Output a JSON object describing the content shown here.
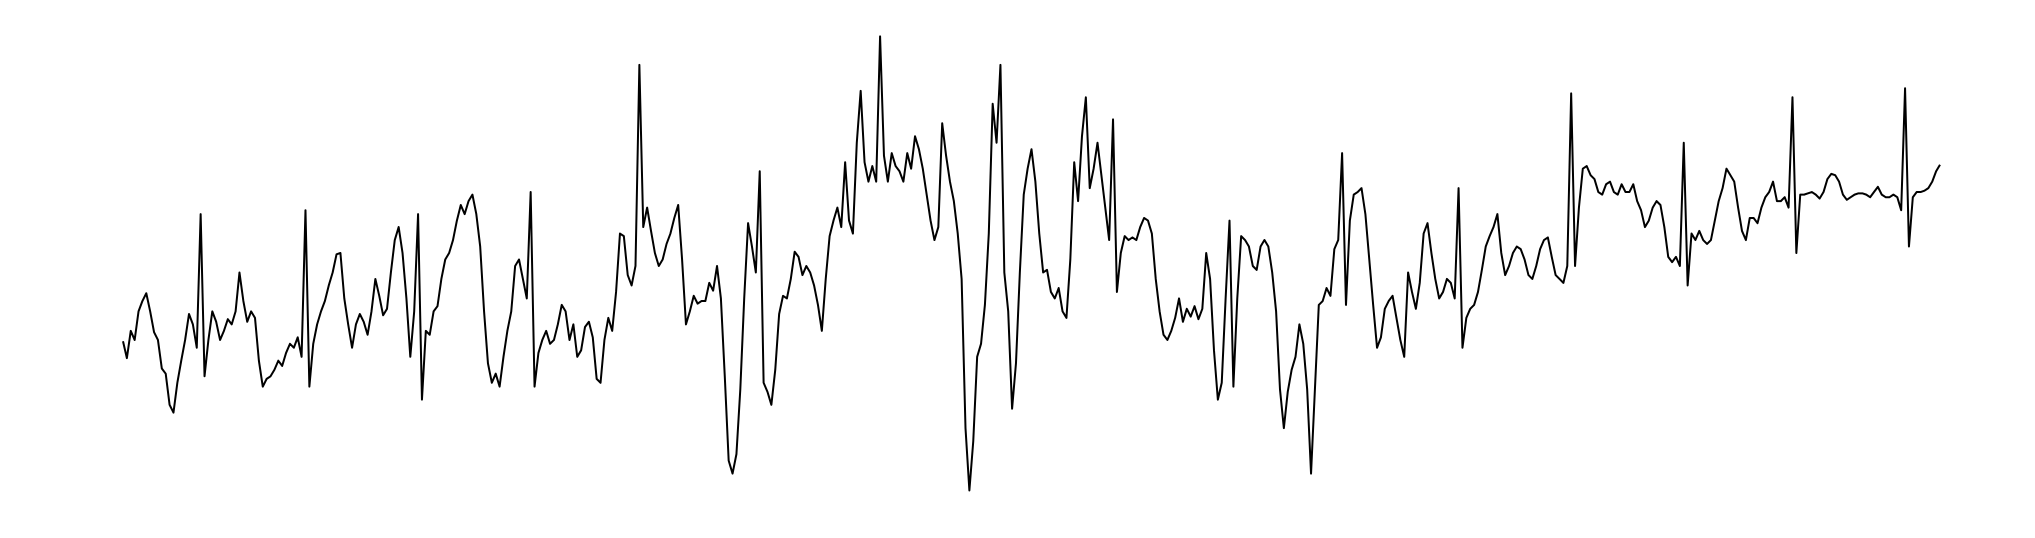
{
  "chart_data": {
    "type": "line",
    "color": "#000000",
    "ylim": [
      0,
      400
    ],
    "values": [
      137,
      124,
      145,
      138,
      160,
      168,
      174,
      160,
      144,
      138,
      116,
      112,
      88,
      82,
      105,
      122,
      138,
      158,
      150,
      132,
      235,
      110,
      138,
      160,
      152,
      138,
      145,
      154,
      150,
      160,
      190,
      168,
      152,
      160,
      155,
      122,
      102,
      108,
      110,
      115,
      122,
      118,
      128,
      135,
      132,
      140,
      125,
      238,
      102,
      135,
      150,
      160,
      168,
      180,
      190,
      204,
      205,
      170,
      150,
      132,
      150,
      158,
      152,
      142,
      160,
      185,
      172,
      157,
      162,
      190,
      215,
      225,
      205,
      170,
      125,
      160,
      235,
      92,
      145,
      142,
      160,
      164,
      185,
      200,
      205,
      215,
      230,
      242,
      235,
      245,
      250,
      235,
      210,
      160,
      120,
      105,
      112,
      102,
      125,
      145,
      160,
      195,
      200,
      185,
      170,
      252,
      102,
      128,
      138,
      145,
      135,
      138,
      150,
      165,
      160,
      138,
      150,
      125,
      130,
      148,
      152,
      140,
      108,
      105,
      138,
      155,
      145,
      175,
      220,
      218,
      188,
      180,
      195,
      350,
      225,
      240,
      222,
      205,
      195,
      200,
      212,
      220,
      232,
      242,
      200,
      150,
      160,
      172,
      166,
      168,
      168,
      182,
      176,
      195,
      170,
      110,
      45,
      35,
      50,
      100,
      170,
      228,
      210,
      190,
      268,
      105,
      98,
      88,
      115,
      158,
      172,
      170,
      185,
      206,
      202,
      188,
      195,
      190,
      180,
      165,
      145,
      185,
      218,
      230,
      240,
      225,
      275,
      230,
      220,
      290,
      330,
      275,
      260,
      272,
      260,
      372,
      280,
      260,
      282,
      272,
      268,
      260,
      282,
      270,
      295,
      285,
      270,
      250,
      230,
      215,
      225,
      305,
      280,
      260,
      245,
      220,
      185,
      70,
      22,
      60,
      125,
      135,
      165,
      220,
      320,
      290,
      350,
      190,
      160,
      85,
      120,
      190,
      250,
      270,
      285,
      260,
      220,
      190,
      192,
      175,
      170,
      178,
      160,
      155,
      200,
      275,
      245,
      295,
      325,
      255,
      270,
      290,
      265,
      240,
      215,
      308,
      175,
      205,
      218,
      215,
      217,
      215,
      225,
      232,
      230,
      220,
      185,
      160,
      142,
      138,
      145,
      155,
      170,
      152,
      162,
      156,
      164,
      154,
      162,
      205,
      185,
      130,
      92,
      105,
      170,
      230,
      102,
      170,
      218,
      215,
      210,
      195,
      192,
      210,
      215,
      210,
      190,
      160,
      100,
      70,
      98,
      115,
      125,
      150,
      135,
      100,
      35,
      100,
      165,
      168,
      178,
      172,
      208,
      215,
      282,
      165,
      230,
      250,
      252,
      255,
      235,
      200,
      165,
      132,
      140,
      162,
      168,
      172,
      155,
      138,
      125,
      190,
      175,
      162,
      182,
      220,
      228,
      205,
      185,
      170,
      175,
      185,
      182,
      170,
      255,
      132,
      155,
      162,
      165,
      175,
      192,
      210,
      218,
      225,
      235,
      205,
      188,
      195,
      205,
      210,
      208,
      200,
      188,
      185,
      195,
      208,
      215,
      217,
      202,
      188,
      185,
      182,
      195,
      328,
      195,
      240,
      270,
      272,
      265,
      262,
      252,
      250,
      258,
      260,
      252,
      250,
      258,
      252,
      252,
      258,
      245,
      238,
      225,
      230,
      240,
      245,
      242,
      225,
      202,
      198,
      202,
      195,
      290,
      180,
      220,
      215,
      222,
      215,
      212,
      215,
      230,
      245,
      255,
      270,
      265,
      260,
      240,
      222,
      215,
      232,
      232,
      228,
      240,
      248,
      252,
      260,
      245,
      245,
      248,
      240,
      325,
      205,
      250,
      250,
      251,
      252,
      250,
      247,
      252,
      262,
      266,
      265,
      260,
      250,
      246,
      248,
      250,
      251,
      251,
      250,
      248,
      252,
      256,
      250,
      248,
      248,
      250,
      248,
      238,
      332,
      210,
      248,
      252,
      252,
      253,
      255,
      260,
      268,
      273
    ]
  }
}
